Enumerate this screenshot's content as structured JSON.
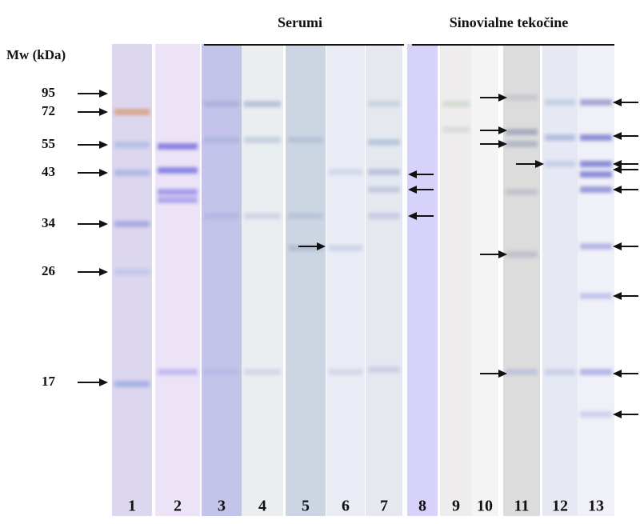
{
  "header": {
    "serum_group": "Serumi",
    "synovial_group": "Sinovialne tekočine"
  },
  "axis_label": "Mw (kDa)",
  "markers": [
    95,
    72,
    55,
    43,
    34,
    26,
    17
  ],
  "lanes": [
    "1",
    "2",
    "3",
    "4",
    "5",
    "6",
    "7",
    "8",
    "9",
    "10",
    "11",
    "12",
    "13"
  ]
}
